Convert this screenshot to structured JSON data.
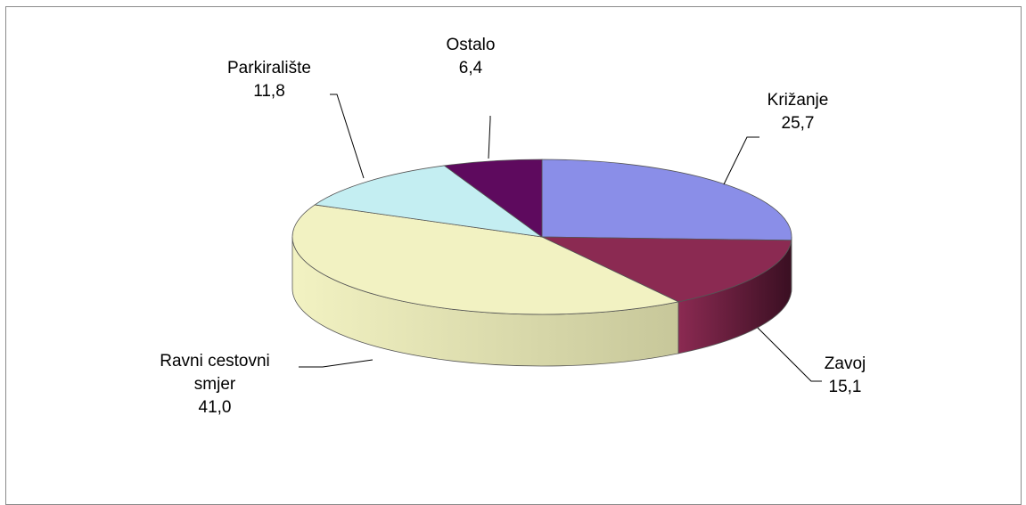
{
  "chart_data": {
    "type": "pie",
    "title": "",
    "slices": [
      {
        "label_lines": [
          "Križanje"
        ],
        "value": 25.7,
        "value_text": "25,7",
        "color": "#8a8ee8",
        "side_color": "#4e5196"
      },
      {
        "label_lines": [
          "Zavoj"
        ],
        "value": 15.1,
        "value_text": "15,1",
        "color": "#8b2a52",
        "side_color": "#3a0f22"
      },
      {
        "label_lines": [
          "Ravni  cestovni",
          "smjer"
        ],
        "value": 41.0,
        "value_text": "41,0",
        "color": "#f2f2c2",
        "side_color": "#c7c79a"
      },
      {
        "label_lines": [
          "Parkiralište"
        ],
        "value": 11.8,
        "value_text": "11,8",
        "color": "#c4eef2",
        "side_color": "#8fb8bc"
      },
      {
        "label_lines": [
          "Ostalo"
        ],
        "value": 6.4,
        "value_text": "6,4",
        "color": "#5e0a5e",
        "side_color": "#2e032e"
      }
    ],
    "legend": "none",
    "style": "3d-pie"
  }
}
